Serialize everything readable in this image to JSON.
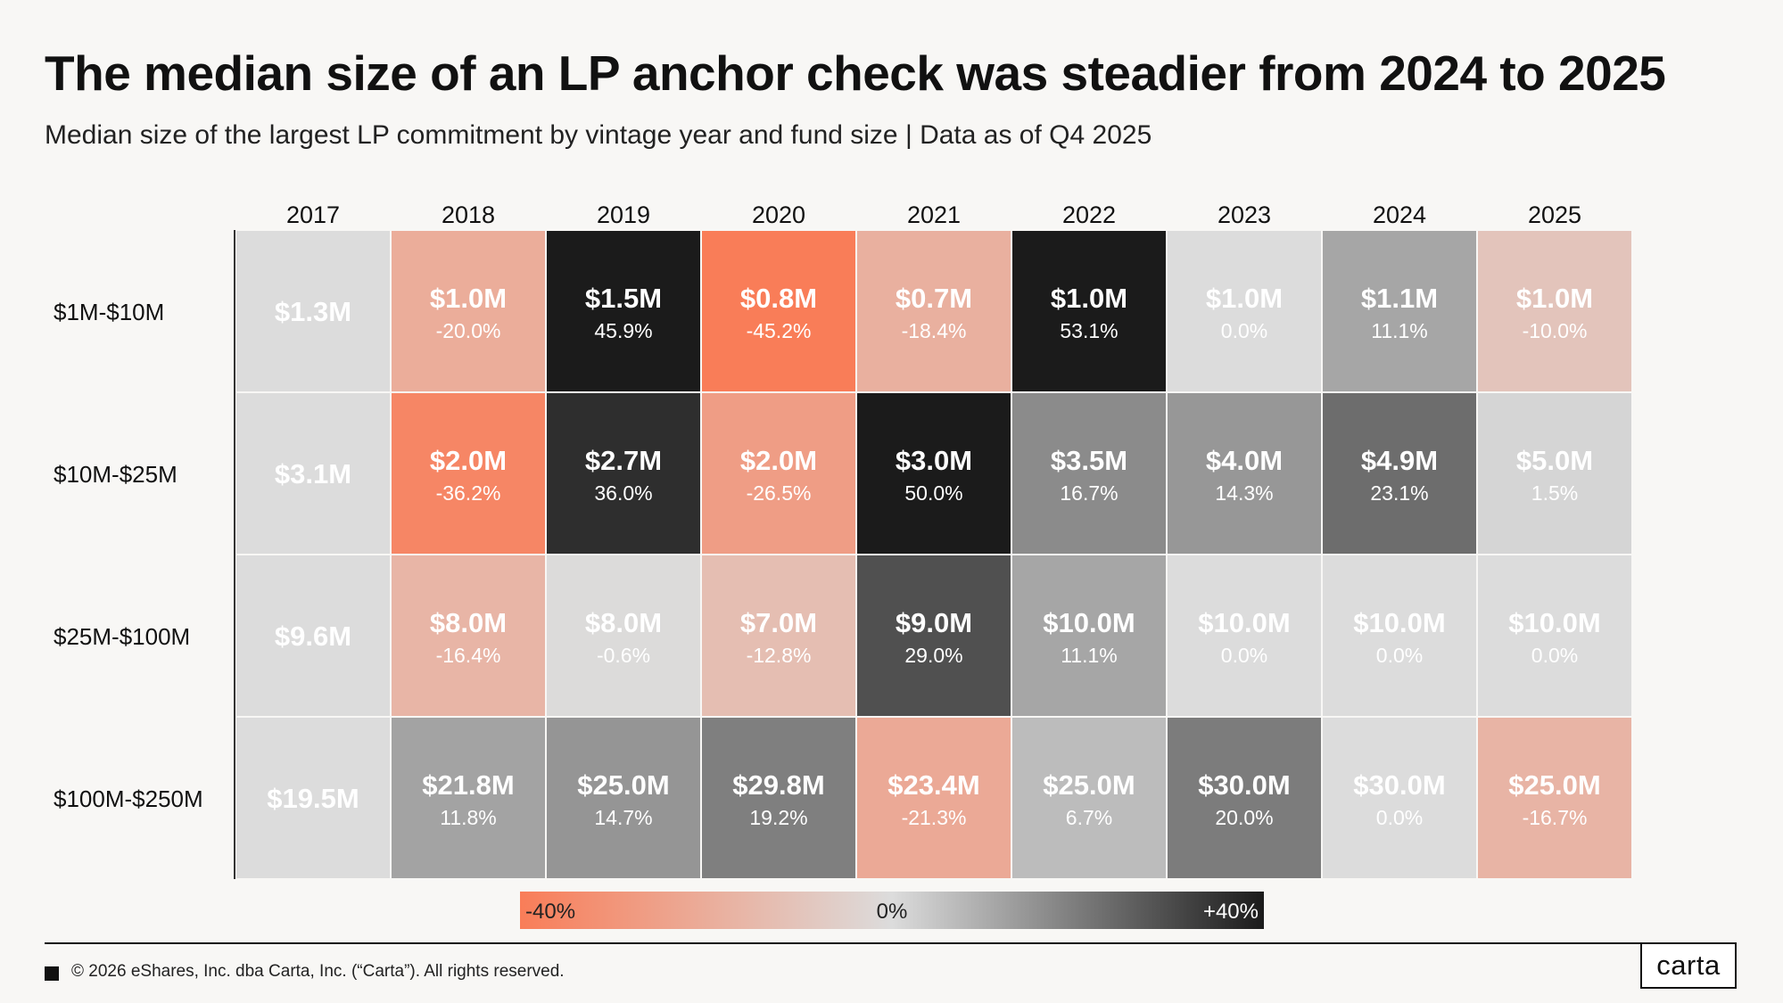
{
  "title": "The median size of an LP anchor check was steadier from 2024 to 2025",
  "subtitle": "Median size of the largest LP commitment by vintage year and fund size | Data as of Q4 2025",
  "footer": {
    "copyright": "© 2026 eShares, Inc. dba Carta, Inc. (“Carta”). All rights reserved.",
    "logo": "carta"
  },
  "colors": {
    "negative_max": "#f97d58",
    "neutral": "#dcdcdc",
    "positive_max": "#1b1b1b",
    "background": "#f8f7f5"
  },
  "chart_data": {
    "type": "heatmap",
    "title": "The median size of an LP anchor check was steadier from 2024 to 2025",
    "subtitle": "Median size of the largest LP commitment by vintage year and fund size | Data as of Q4 2025",
    "columns": [
      "2017",
      "2018",
      "2019",
      "2020",
      "2021",
      "2022",
      "2023",
      "2024",
      "2025"
    ],
    "rows": [
      {
        "label": "$1M-$10M",
        "values": [
          "$1.3M",
          "$1.0M",
          "$1.5M",
          "$0.8M",
          "$0.7M",
          "$1.0M",
          "$1.0M",
          "$1.1M",
          "$1.0M"
        ],
        "changes": [
          "",
          "-20.0%",
          "45.9%",
          "-45.2%",
          "-18.4%",
          "53.1%",
          "0.0%",
          "11.1%",
          "-10.0%"
        ],
        "change_values": [
          null,
          -20.0,
          45.9,
          -45.2,
          -18.4,
          53.1,
          0.0,
          11.1,
          -10.0
        ]
      },
      {
        "label": "$10M-$25M",
        "values": [
          "$3.1M",
          "$2.0M",
          "$2.7M",
          "$2.0M",
          "$3.0M",
          "$3.5M",
          "$4.0M",
          "$4.9M",
          "$5.0M"
        ],
        "changes": [
          "",
          "-36.2%",
          "36.0%",
          "-26.5%",
          "50.0%",
          "16.7%",
          "14.3%",
          "23.1%",
          "1.5%"
        ],
        "change_values": [
          null,
          -36.2,
          36.0,
          -26.5,
          50.0,
          16.7,
          14.3,
          23.1,
          1.5
        ]
      },
      {
        "label": "$25M-$100M",
        "values": [
          "$9.6M",
          "$8.0M",
          "$8.0M",
          "$7.0M",
          "$9.0M",
          "$10.0M",
          "$10.0M",
          "$10.0M",
          "$10.0M"
        ],
        "changes": [
          "",
          "-16.4%",
          "-0.6%",
          "-12.8%",
          "29.0%",
          "11.1%",
          "0.0%",
          "0.0%",
          "0.0%"
        ],
        "change_values": [
          null,
          -16.4,
          -0.6,
          -12.8,
          29.0,
          11.1,
          0.0,
          0.0,
          0.0
        ]
      },
      {
        "label": "$100M-$250M",
        "values": [
          "$19.5M",
          "$21.8M",
          "$25.0M",
          "$29.8M",
          "$23.4M",
          "$25.0M",
          "$30.0M",
          "$30.0M",
          "$25.0M"
        ],
        "changes": [
          "",
          "11.8%",
          "14.7%",
          "19.2%",
          "-21.3%",
          "6.7%",
          "20.0%",
          "0.0%",
          "-16.7%"
        ],
        "change_values": [
          null,
          11.8,
          14.7,
          19.2,
          -21.3,
          6.7,
          20.0,
          0.0,
          -16.7
        ]
      }
    ],
    "color_scale": {
      "min": -40,
      "max": 40,
      "labels": [
        "-40%",
        "0%",
        "+40%"
      ]
    },
    "legend_placement": "bottom"
  }
}
